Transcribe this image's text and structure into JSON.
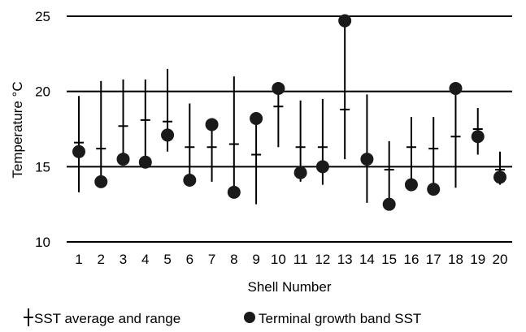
{
  "chart_data": {
    "type": "scatter",
    "title": "",
    "xlabel": "Shell Number",
    "ylabel": "Temperature °C",
    "ylim": [
      10,
      25
    ],
    "yticks": [
      "10",
      "15",
      "20",
      "25"
    ],
    "grid": "horizontal",
    "legend_position": "bottom",
    "categories": [
      "1",
      "2",
      "3",
      "4",
      "5",
      "6",
      "7",
      "8",
      "9",
      "10",
      "11",
      "12",
      "13",
      "14",
      "15",
      "16",
      "17",
      "18",
      "19",
      "20"
    ],
    "series": [
      {
        "name": "SST average and range",
        "marker": "range-bar",
        "average": [
          16.6,
          16.2,
          17.7,
          18.1,
          18.0,
          16.3,
          16.3,
          16.5,
          15.8,
          19.0,
          16.3,
          16.3,
          18.8,
          15.4,
          14.8,
          16.3,
          16.2,
          17.0,
          17.5,
          14.8
        ],
        "max": [
          19.7,
          20.7,
          20.8,
          20.8,
          21.5,
          19.2,
          17.8,
          21.0,
          18.2,
          20.2,
          19.4,
          19.5,
          24.7,
          19.8,
          16.7,
          18.3,
          18.3,
          20.2,
          18.9,
          16.0
        ],
        "min": [
          13.3,
          14.0,
          15.5,
          15.3,
          16.0,
          14.1,
          14.0,
          13.3,
          12.5,
          16.3,
          14.0,
          13.8,
          15.5,
          12.6,
          12.5,
          13.9,
          13.5,
          13.6,
          15.8,
          13.8
        ]
      },
      {
        "name": "Terminal growth band SST",
        "marker": "circle",
        "values": [
          16.0,
          14.0,
          15.5,
          15.3,
          17.1,
          14.1,
          17.8,
          13.3,
          18.2,
          20.2,
          14.6,
          15.0,
          24.7,
          15.5,
          12.5,
          13.8,
          13.5,
          20.2,
          17.0,
          14.3
        ]
      }
    ]
  },
  "legend": {
    "range_label": "SST average and range",
    "dot_label": "Terminal growth band SST"
  },
  "colors": {
    "marker": "#1a1a1a",
    "line": "#000000"
  }
}
